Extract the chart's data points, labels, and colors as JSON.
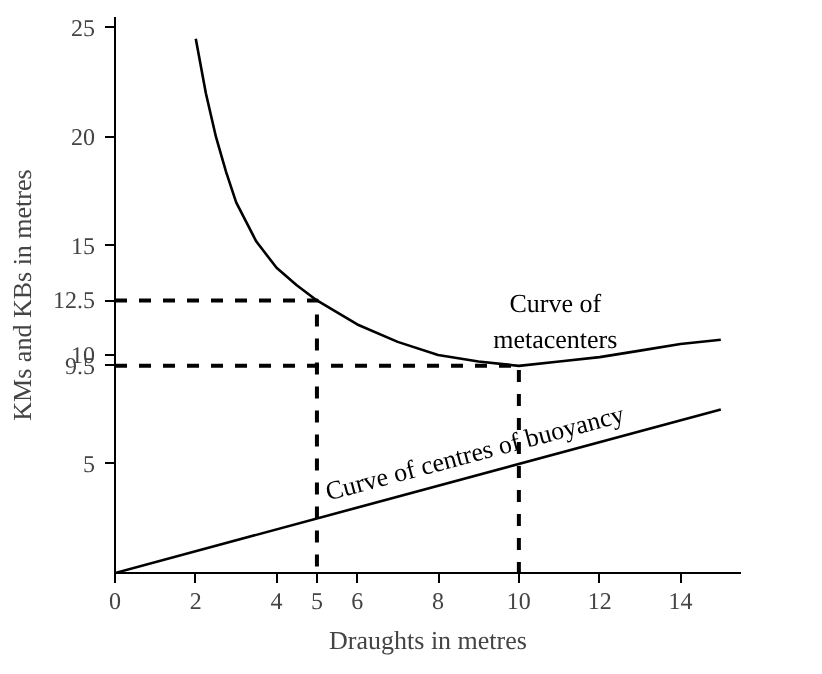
{
  "chart_data": {
    "type": "line",
    "xlabel": "Draughts in metres",
    "ylabel": "KMs and KBs in metres",
    "series": [
      {
        "color": "#000000",
        "x": [
          2,
          2.25,
          2.5,
          2.75,
          3,
          3.5,
          4,
          4.5,
          5,
          6,
          7,
          8,
          9,
          10,
          11,
          12,
          13,
          14,
          15
        ],
        "values": [
          24.5,
          22,
          20,
          18.4,
          17,
          15.2,
          14,
          13.2,
          12.5,
          11.4,
          10.6,
          10.0,
          9.7,
          9.5,
          9.7,
          9.9,
          10.2,
          10.5,
          10.7
        ]
      },
      {
        "color": "#000000",
        "x": [
          0,
          15
        ],
        "values": [
          0,
          7.5
        ]
      },
      {
        "color": "#000000",
        "x": [
          0,
          5,
          5
        ],
        "values": [
          12.5,
          12.5,
          0
        ],
        "line_style": "dashed"
      },
      {
        "color": "#000000",
        "x": [
          0,
          10,
          10
        ],
        "values": [
          9.5,
          9.5,
          0
        ],
        "line_style": "dashed"
      }
    ],
    "annotations": [
      {
        "text": "Curve of\nmetacenters",
        "x": 11,
        "y": 9.7
      },
      {
        "text": "Curve of centres of buoyancy",
        "x": 9,
        "y": 4.5
      }
    ],
    "xlim": [
      0,
      15.5
    ],
    "ylim": [
      0,
      25.5
    ],
    "xticks": [
      0,
      2,
      4,
      5,
      6,
      8,
      10,
      12,
      14
    ],
    "yticks": [
      5,
      9.5,
      10,
      12.5,
      15,
      20,
      25
    ],
    "grid": false,
    "line_style": "solid",
    "marker": "none"
  }
}
